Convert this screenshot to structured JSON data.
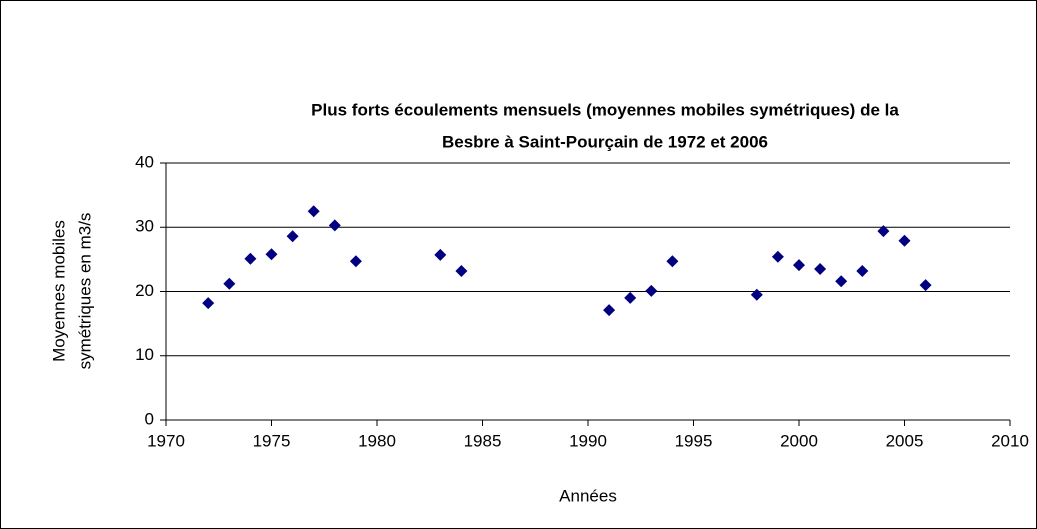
{
  "chart_data": {
    "type": "scatter",
    "title": [
      "Plus forts écoulements mensuels (moyennes mobiles symétriques) de la",
      "Besbre à Saint-Pourçain de 1972 et 2006"
    ],
    "xlabel": "Années",
    "ylabel": [
      "Moyennes mobiles",
      "symétriques en m3/s"
    ],
    "x": [
      1972,
      1973,
      1974,
      1975,
      1976,
      1977,
      1978,
      1979,
      1983,
      1984,
      1991,
      1992,
      1993,
      1994,
      1998,
      1999,
      2000,
      2001,
      2002,
      2003,
      2004,
      2005,
      2006
    ],
    "values": [
      18.2,
      21.2,
      25.1,
      25.8,
      28.6,
      32.5,
      30.3,
      24.7,
      25.7,
      23.2,
      17.1,
      19.0,
      20.1,
      24.7,
      19.5,
      25.4,
      24.1,
      23.5,
      21.6,
      23.2,
      29.4,
      27.9,
      21.0
    ],
    "color": "#000080",
    "xlim": [
      1970,
      2010
    ],
    "xticks": [
      1970,
      1975,
      1980,
      1985,
      1990,
      1995,
      2000,
      2005,
      2010
    ],
    "ylim": [
      0,
      40
    ],
    "yticks": [
      0,
      10,
      20,
      30,
      40
    ],
    "grid": true
  }
}
